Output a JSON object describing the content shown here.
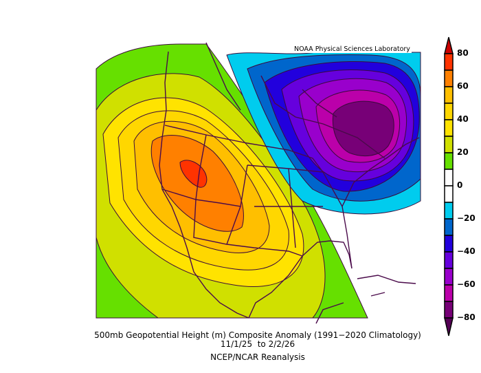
{
  "credit": "NOAA Physical Sciences Laboratory",
  "caption": {
    "title": "500mb Geopotential Height (m) Composite Anomaly (1991−2020 Climatology)",
    "dates": "11/1/25  to 2/2/26",
    "source": "NCEP/NCAR Reanalysis"
  },
  "colorbar": {
    "labels": [
      "80",
      "60",
      "40",
      "20",
      "0",
      "−20",
      "−40",
      "−60",
      "−80"
    ],
    "over_color": "#cc0000",
    "under_color": "#550055",
    "colors": [
      "#ff3300",
      "#ff8000",
      "#ffbf00",
      "#ffd700",
      "#ffe300",
      "#d0e000",
      "#66e000",
      "#ffffff",
      "#ffffff",
      "#00ccee",
      "#0066cc",
      "#2200dd",
      "#6600dd",
      "#9900cc",
      "#bb00aa",
      "#770077"
    ]
  }
}
